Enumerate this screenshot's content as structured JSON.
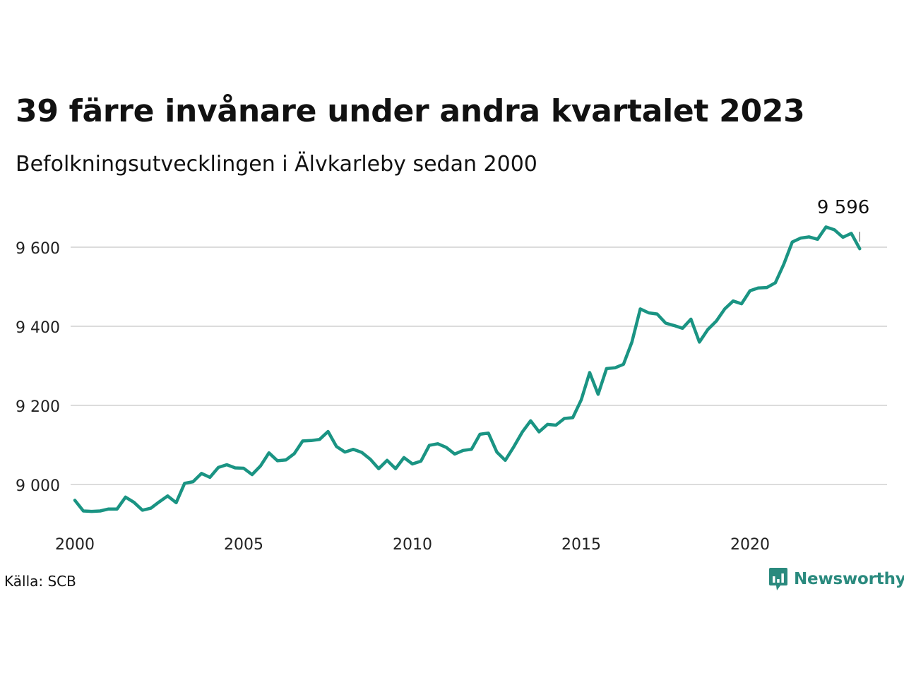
{
  "title": "39 färre invånare under andra kvartalet 2023",
  "subtitle": "Befolkningsutvecklingen i Älvkarleby sedan 2000",
  "source": "Källa: SCB",
  "brand": "Newsworthy",
  "colors": {
    "line": "#1a9483",
    "grid": "#dcdcdc",
    "brand": "#2a8a7e"
  },
  "chart_data": {
    "type": "line",
    "x_start": 2000.0,
    "x_step": 0.25,
    "xlim": [
      1999.9,
      2024.1
    ],
    "ylim": [
      8880,
      9680
    ],
    "yticks": [
      9000,
      9200,
      9400,
      9600
    ],
    "ytick_labels": [
      "9 000",
      "9 200",
      "9 400",
      "9 600"
    ],
    "xticks": [
      2000,
      2005,
      2010,
      2015,
      2020
    ],
    "xtick_labels": [
      "2000",
      "2005",
      "2010",
      "2015",
      "2020"
    ],
    "last_label": "9 596",
    "values": [
      8960,
      8933,
      8932,
      8933,
      8938,
      8938,
      8968,
      8955,
      8935,
      8940,
      8956,
      8971,
      8954,
      9003,
      9007,
      9028,
      9018,
      9043,
      9050,
      9042,
      9041,
      9025,
      9047,
      9080,
      9060,
      9062,
      9078,
      9110,
      9111,
      9114,
      9134,
      9096,
      9082,
      9089,
      9081,
      9064,
      9040,
      9061,
      9040,
      9068,
      9052,
      9059,
      9099,
      9103,
      9094,
      9077,
      9086,
      9089,
      9127,
      9130,
      9082,
      9061,
      9095,
      9132,
      9161,
      9133,
      9152,
      9150,
      9167,
      9169,
      9214,
      9283,
      9228,
      9293,
      9295,
      9304,
      9360,
      9444,
      9434,
      9431,
      9408,
      9402,
      9395,
      9418,
      9360,
      9392,
      9413,
      9444,
      9464,
      9457,
      9490,
      9497,
      9498,
      9510,
      9557,
      9613,
      9623,
      9626,
      9620,
      9651,
      9644,
      9625,
      9635,
      9596
    ]
  }
}
